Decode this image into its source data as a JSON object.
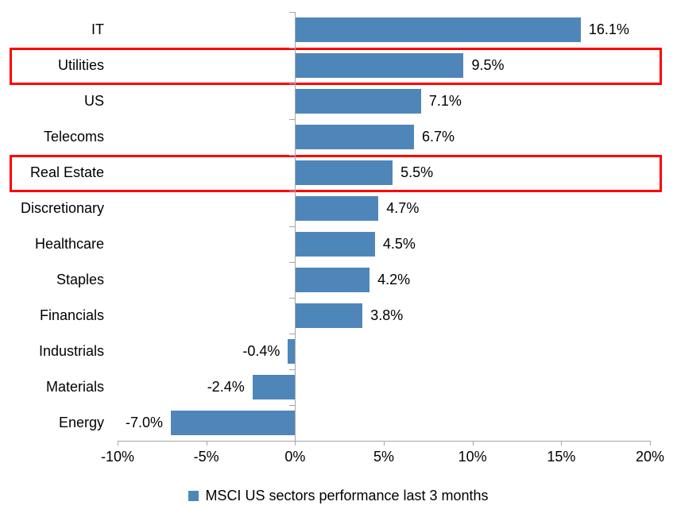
{
  "chart_data": {
    "type": "bar",
    "orientation": "horizontal",
    "title": "",
    "legend": "MSCI US sectors performance last 3 months",
    "legend_position": "bottom-center",
    "categories": [
      "IT",
      "Utilities",
      "US",
      "Telecoms",
      "Real Estate",
      "Discretionary",
      "Healthcare",
      "Staples",
      "Financials",
      "Industrials",
      "Materials",
      "Energy"
    ],
    "values": [
      16.1,
      9.5,
      7.1,
      6.7,
      5.5,
      4.7,
      4.5,
      4.2,
      3.8,
      -0.4,
      -2.4,
      -7.0
    ],
    "data_labels": [
      "16.1%",
      "9.5%",
      "7.1%",
      "6.7%",
      "5.5%",
      "4.7%",
      "4.5%",
      "4.2%",
      "3.8%",
      "-0.4%",
      "-2.4%",
      "-7.0%"
    ],
    "highlighted_categories": [
      "Utilities",
      "Real Estate"
    ],
    "x_axis": {
      "min": -10,
      "max": 20,
      "tick_labels": [
        "-10%",
        "-5%",
        "0%",
        "5%",
        "10%",
        "15%",
        "20%"
      ],
      "tick_values": [
        -10,
        -5,
        0,
        5,
        10,
        15,
        20
      ]
    },
    "grid": false,
    "colors": {
      "bar": "#4f86ba",
      "highlight_box": "#ff0000",
      "axis": "#a6a6a6",
      "text": "#000000",
      "background": "#ffffff"
    }
  }
}
